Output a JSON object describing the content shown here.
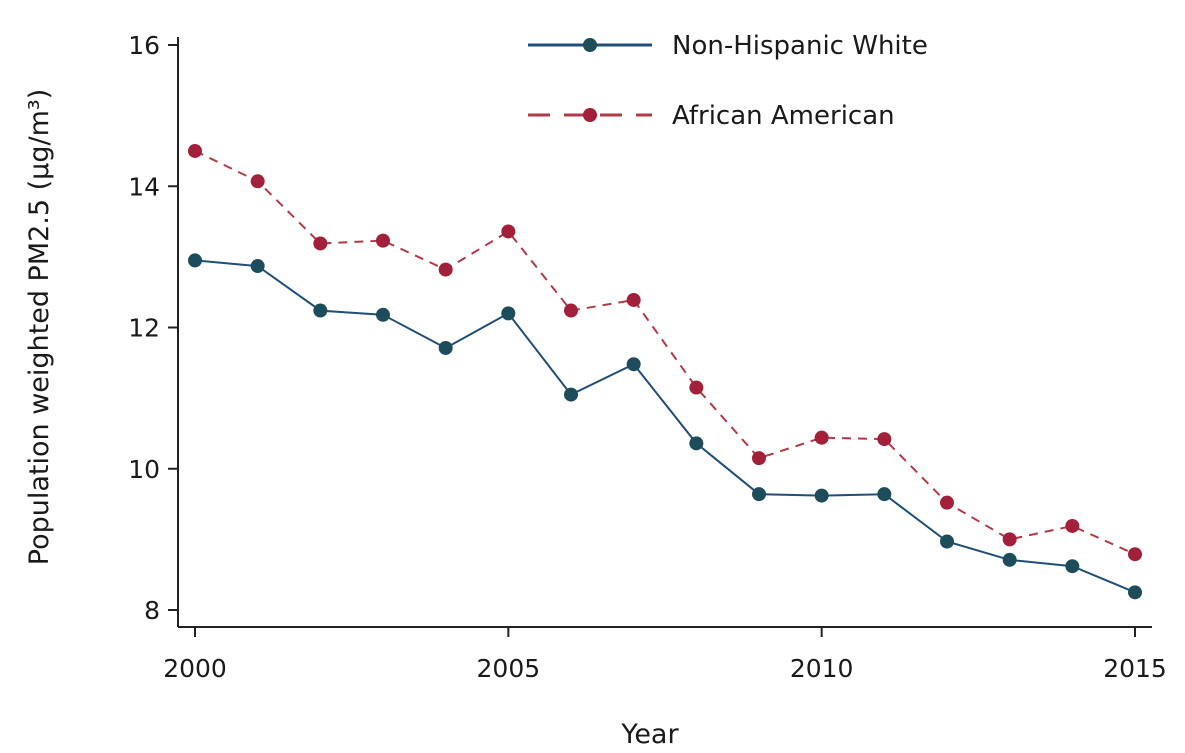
{
  "chart_data": {
    "type": "line",
    "x": [
      2000,
      2001,
      2002,
      2003,
      2004,
      2005,
      2006,
      2007,
      2008,
      2009,
      2010,
      2011,
      2012,
      2013,
      2014,
      2015
    ],
    "series": [
      {
        "name": "Non-Hispanic White",
        "values": [
          12.95,
          12.87,
          12.24,
          12.18,
          11.71,
          12.2,
          11.05,
          11.48,
          10.36,
          9.64,
          9.62,
          9.64,
          8.97,
          8.71,
          8.62,
          8.25
        ],
        "color": "#1f4e79",
        "marker_color": "#1d4d5a",
        "line_style": "solid"
      },
      {
        "name": "African American",
        "values": [
          14.5,
          14.07,
          13.19,
          13.23,
          12.82,
          13.36,
          12.24,
          12.39,
          11.15,
          10.15,
          10.44,
          10.42,
          9.52,
          9.0,
          9.19,
          8.79
        ],
        "color": "#b23a48",
        "marker_color": "#a3203a",
        "line_style": "dashed"
      }
    ],
    "title": "",
    "xlabel": "Year",
    "ylabel": "Population weighted PM2.5 (µg/m³)",
    "xlim": [
      2000,
      2015
    ],
    "ylim": [
      8,
      16
    ],
    "xticks": [
      2000,
      2005,
      2010,
      2015
    ],
    "yticks": [
      8,
      10,
      12,
      14,
      16
    ],
    "grid": false,
    "legend_position": "top-right"
  }
}
